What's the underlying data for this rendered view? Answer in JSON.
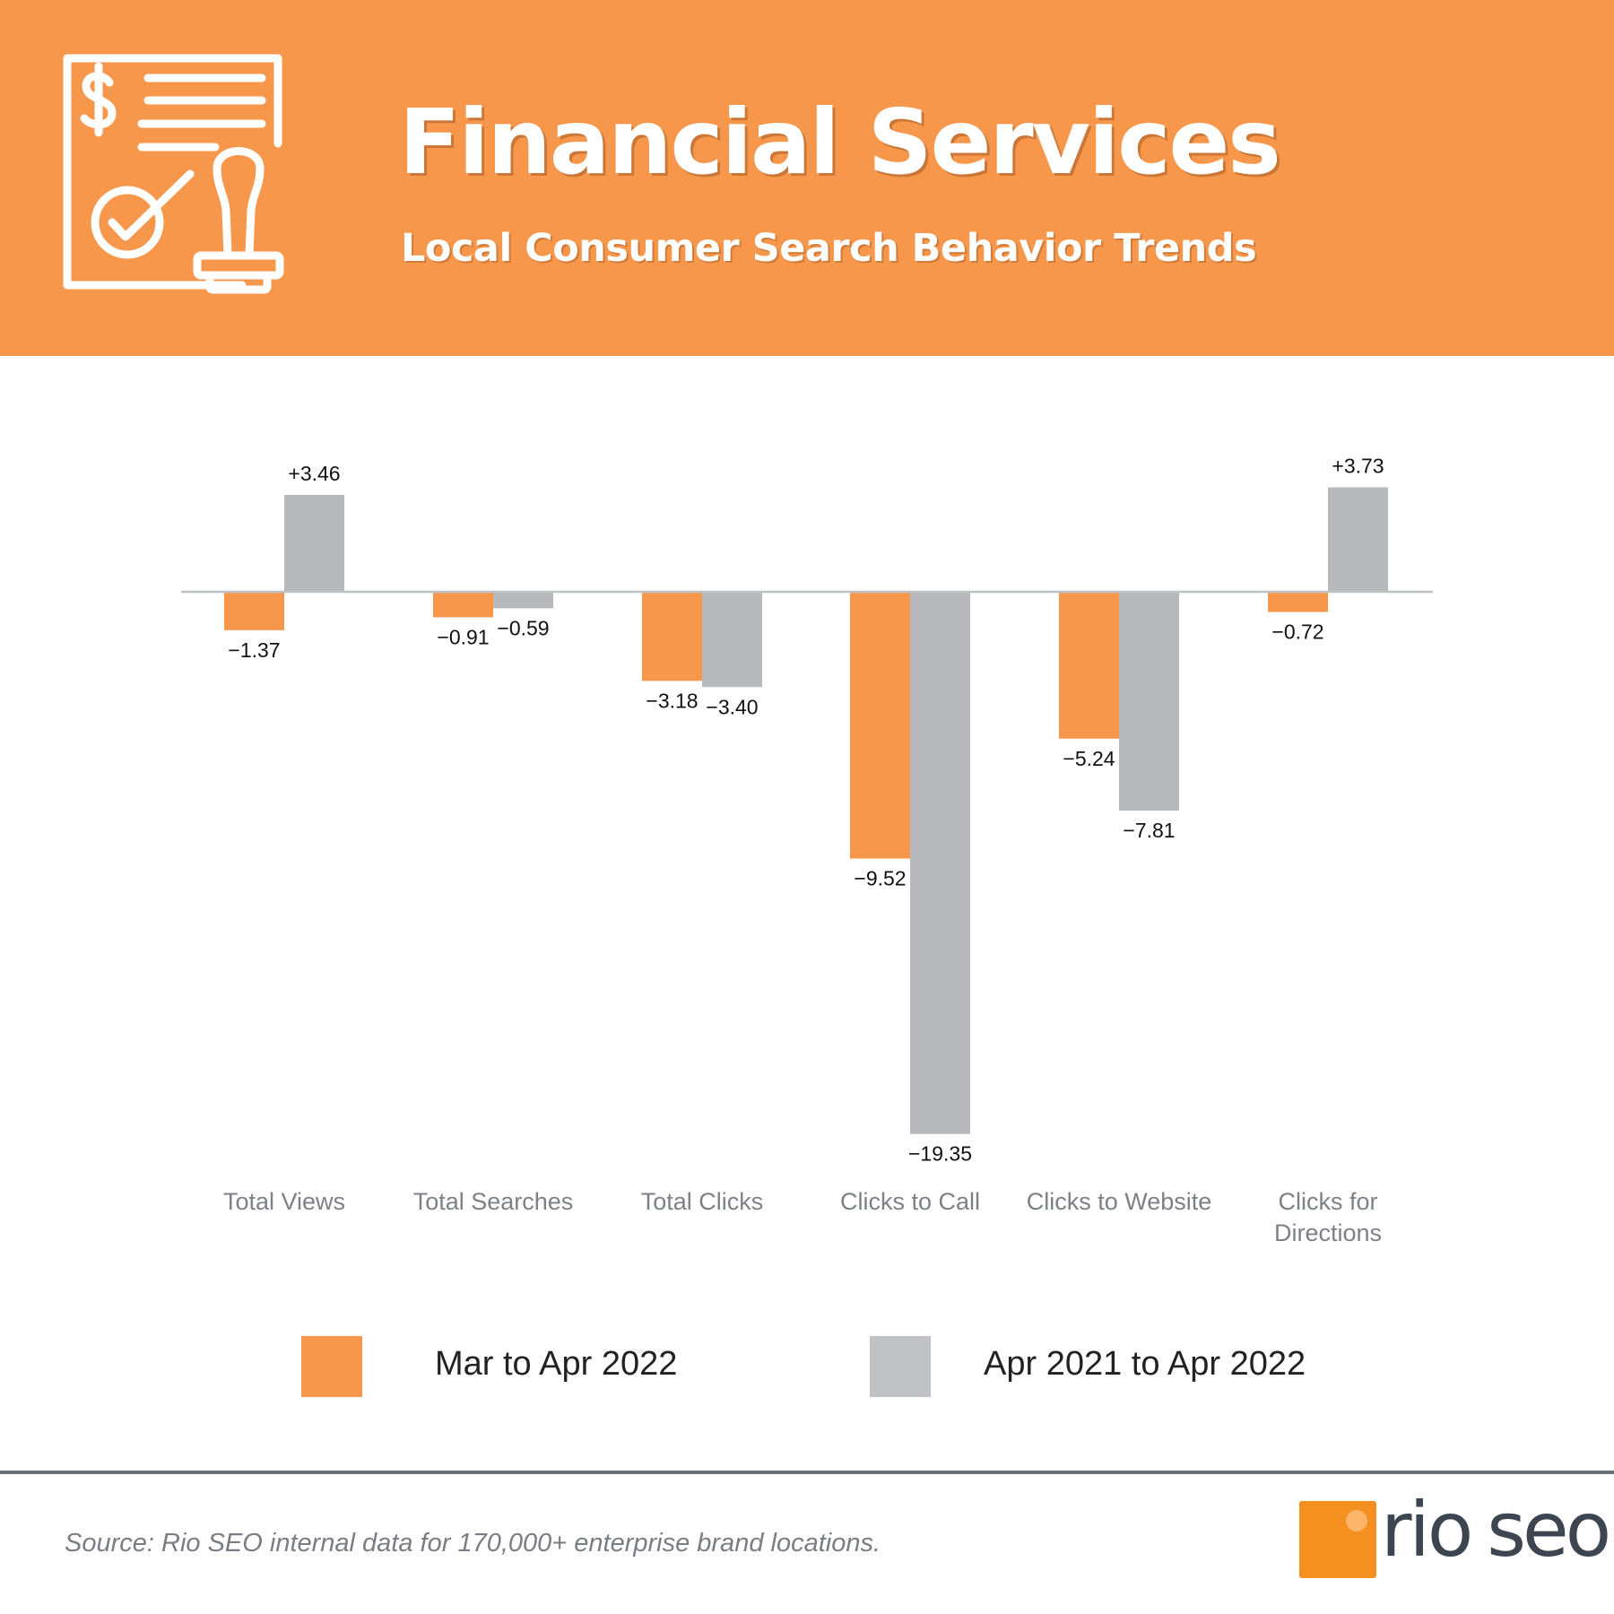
{
  "header": {
    "title": "Financial Services",
    "subtitle": "Local Consumer Search Behavior Trends",
    "icon": "financial-document-stamp-icon"
  },
  "colors": {
    "header_bg": "#f7974b",
    "series1": "#f7974b",
    "series2": "#b8b9bd",
    "axis_line": "#bfc1c4",
    "category_text": "#7d8187"
  },
  "chart_data": {
    "type": "bar",
    "title": "",
    "xlabel": "",
    "ylabel": "",
    "ylim": [
      -19.35,
      3.73
    ],
    "grid": false,
    "categories": [
      [
        "Total Views"
      ],
      [
        "Total Searches"
      ],
      [
        "Total Clicks"
      ],
      [
        "Clicks to Call"
      ],
      [
        "Clicks to Website"
      ],
      [
        "Clicks for",
        "Directions"
      ]
    ],
    "series": [
      {
        "name": "Mar to Apr 2022",
        "values": [
          -1.37,
          -0.91,
          -3.18,
          -9.52,
          -5.24,
          -0.72
        ],
        "labels": [
          "−1.37",
          "−0.91",
          "−3.18",
          "−9.52",
          "−5.24",
          "−0.72"
        ]
      },
      {
        "name": "Apr 2021 to Apr 2022",
        "values": [
          3.46,
          -0.59,
          -3.4,
          -19.35,
          -7.81,
          3.73
        ],
        "labels": [
          "+3.46",
          "−0.59",
          "−3.40",
          "−19.35",
          "−7.81",
          "+3.73"
        ]
      }
    ]
  },
  "legend": {
    "items": [
      "Mar to Apr 2022",
      "Apr 2021 to Apr 2022"
    ]
  },
  "footer": {
    "source": "Source: Rio SEO internal data for 170,000+ enterprise brand locations.",
    "logo_text": "rioseo"
  }
}
